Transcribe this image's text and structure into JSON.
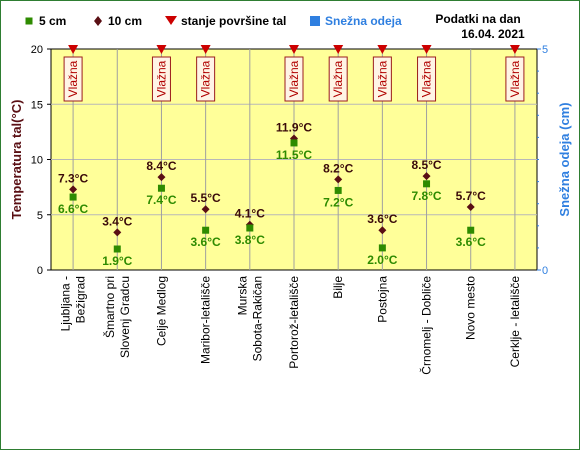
{
  "chart_data": {
    "type": "scatter",
    "header": {
      "line1": "Podatki na dan",
      "line2": "16.04. 2021"
    },
    "legend": [
      {
        "key": "t5",
        "label": "5 cm",
        "symbol": "square",
        "color": "#2e8b00"
      },
      {
        "key": "t10",
        "label": "10 cm",
        "symbol": "diamond",
        "color": "#5a0f14"
      },
      {
        "key": "surface",
        "label": "stanje površine tal",
        "symbol": "triangle-down",
        "color": "#cc0000"
      },
      {
        "key": "snow",
        "label": "Snežna odeja",
        "symbol": "square",
        "color": "#2f7fe0"
      }
    ],
    "ylabel": "Temperatura tal(°C)",
    "ylabel_right": "Snežna odeja (cm)",
    "ylim": [
      0,
      20
    ],
    "yticks": [
      "0",
      "5",
      "10",
      "15",
      "20"
    ],
    "ylim_right": [
      0,
      5
    ],
    "yticks_right": [
      "0",
      "5"
    ],
    "categories": [
      [
        "Ljubljana -",
        "Bežigrad"
      ],
      [
        "Šmartno pri",
        "Slovenj Gradcu"
      ],
      [
        "Celje Medlog"
      ],
      [
        "Maribor-letališče"
      ],
      [
        "Murska",
        "Sobota-Rakičan"
      ],
      [
        "Portorož-letališče"
      ],
      [
        "Bilje"
      ],
      [
        "Postojna"
      ],
      [
        "Črnomelj - Dobliče"
      ],
      [
        "Novo mesto"
      ],
      [
        "Cerklje - letališče"
      ]
    ],
    "series": [
      {
        "key": "t10",
        "name": "10 cm",
        "color": "#5a0f14",
        "values": [
          7.3,
          3.4,
          8.4,
          5.5,
          4.1,
          11.9,
          8.2,
          3.6,
          8.5,
          5.7,
          null
        ]
      },
      {
        "key": "t5",
        "name": "5 cm",
        "color": "#2e8b00",
        "values": [
          6.6,
          1.9,
          7.4,
          3.6,
          3.8,
          11.5,
          7.2,
          2.0,
          7.8,
          3.6,
          null
        ]
      }
    ],
    "value_labels": {
      "t10": [
        "7.3°C",
        "3.4°C",
        "8.4°C",
        "5.5°C",
        "4.1°C",
        "11.9°C",
        "8.2°C",
        "3.6°C",
        "8.5°C",
        "5.7°C",
        ""
      ],
      "t5": [
        "6.6°C",
        "1.9°C",
        "7.4°C",
        "3.6°C",
        "3.8°C",
        "11.5°C",
        "7.2°C",
        "2.0°C",
        "7.8°C",
        "3.6°C",
        ""
      ]
    },
    "surface_state": [
      "Vlažna",
      "",
      "Vlažna",
      "Vlažna",
      "",
      "Vlažna",
      "Vlažna",
      "Vlažna",
      "Vlažna",
      "",
      "Vlažna"
    ],
    "surface_marker": [
      true,
      false,
      true,
      true,
      false,
      true,
      true,
      true,
      true,
      false,
      true
    ],
    "plot_background": "#ffff99",
    "grid": true
  }
}
